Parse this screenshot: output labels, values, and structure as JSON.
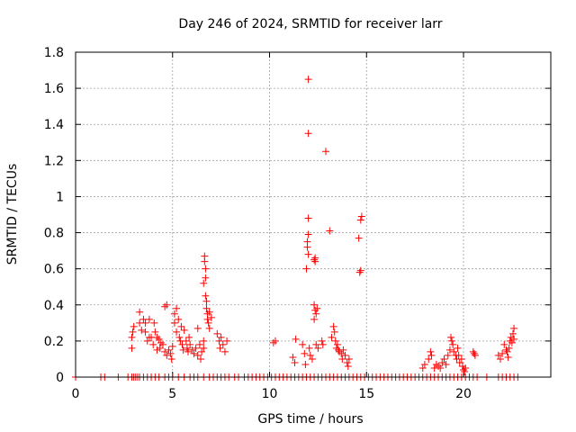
{
  "chart_data": {
    "type": "scatter",
    "title": "Day 246 of 2024, SRMTID for receiver larr",
    "xlabel": "GPS time / hours",
    "ylabel": "SRMTID / TECUs",
    "xlim": [
      0,
      24.5
    ],
    "ylim": [
      0,
      1.8
    ],
    "x_ticks": [
      0,
      5,
      10,
      15,
      20
    ],
    "x_tick_labels": [
      "0",
      "5",
      "10",
      "15",
      "20"
    ],
    "y_ticks": [
      0,
      0.2,
      0.4,
      0.6,
      0.8,
      1.0,
      1.2,
      1.4,
      1.6,
      1.8
    ],
    "y_tick_labels": [
      "0",
      "0.2",
      "0.4",
      "0.6",
      "0.8",
      "1",
      "1.2",
      "1.4",
      "1.6",
      "1.8"
    ],
    "grid": true,
    "marker": "+",
    "color": "#ff0000",
    "series": [
      {
        "name": "SRMTID",
        "points": [
          [
            0.0,
            0.0
          ],
          [
            1.3,
            0.0
          ],
          [
            1.5,
            0.0
          ],
          [
            2.2,
            0.0
          ],
          [
            2.7,
            0.0
          ],
          [
            2.9,
            0.0
          ],
          [
            3.0,
            0.0
          ],
          [
            3.1,
            0.0
          ],
          [
            3.2,
            0.0
          ],
          [
            3.3,
            0.0
          ],
          [
            3.5,
            0.0
          ],
          [
            3.7,
            0.0
          ],
          [
            3.9,
            0.0
          ],
          [
            4.1,
            0.0
          ],
          [
            4.3,
            0.0
          ],
          [
            4.6,
            0.0
          ],
          [
            4.8,
            0.0
          ],
          [
            5.0,
            0.0
          ],
          [
            5.3,
            0.0
          ],
          [
            5.6,
            0.0
          ],
          [
            5.9,
            0.0
          ],
          [
            6.1,
            0.0
          ],
          [
            6.3,
            0.0
          ],
          [
            6.6,
            0.0
          ],
          [
            6.9,
            0.0
          ],
          [
            7.1,
            0.0
          ],
          [
            7.3,
            0.0
          ],
          [
            7.5,
            0.0
          ],
          [
            7.7,
            0.0
          ],
          [
            7.9,
            0.0
          ],
          [
            8.2,
            0.0
          ],
          [
            8.4,
            0.0
          ],
          [
            8.7,
            0.0
          ],
          [
            8.9,
            0.0
          ],
          [
            9.1,
            0.0
          ],
          [
            9.3,
            0.0
          ],
          [
            9.5,
            0.0
          ],
          [
            9.7,
            0.0
          ],
          [
            9.9,
            0.0
          ],
          [
            10.1,
            0.0
          ],
          [
            10.3,
            0.0
          ],
          [
            10.5,
            0.0
          ],
          [
            10.7,
            0.0
          ],
          [
            10.9,
            0.0
          ],
          [
            11.1,
            0.0
          ],
          [
            11.3,
            0.0
          ],
          [
            11.5,
            0.0
          ],
          [
            11.7,
            0.0
          ],
          [
            11.9,
            0.0
          ],
          [
            12.1,
            0.0
          ],
          [
            12.3,
            0.0
          ],
          [
            12.5,
            0.0
          ],
          [
            12.7,
            0.0
          ],
          [
            12.9,
            0.0
          ],
          [
            13.1,
            0.0
          ],
          [
            13.3,
            0.0
          ],
          [
            13.5,
            0.0
          ],
          [
            13.7,
            0.0
          ],
          [
            13.9,
            0.0
          ],
          [
            14.1,
            0.0
          ],
          [
            14.3,
            0.0
          ],
          [
            14.5,
            0.0
          ],
          [
            14.7,
            0.0
          ],
          [
            14.9,
            0.0
          ],
          [
            15.1,
            0.0
          ],
          [
            15.3,
            0.0
          ],
          [
            15.5,
            0.0
          ],
          [
            15.7,
            0.0
          ],
          [
            15.9,
            0.0
          ],
          [
            16.1,
            0.0
          ],
          [
            16.3,
            0.0
          ],
          [
            16.5,
            0.0
          ],
          [
            16.7,
            0.0
          ],
          [
            16.9,
            0.0
          ],
          [
            17.1,
            0.0
          ],
          [
            17.3,
            0.0
          ],
          [
            17.5,
            0.0
          ],
          [
            17.7,
            0.0
          ],
          [
            17.9,
            0.0
          ],
          [
            18.1,
            0.0
          ],
          [
            18.3,
            0.0
          ],
          [
            18.5,
            0.0
          ],
          [
            18.7,
            0.0
          ],
          [
            18.9,
            0.0
          ],
          [
            19.1,
            0.0
          ],
          [
            19.3,
            0.0
          ],
          [
            19.5,
            0.0
          ],
          [
            19.7,
            0.0
          ],
          [
            19.9,
            0.0
          ],
          [
            20.1,
            0.0
          ],
          [
            20.3,
            0.0
          ],
          [
            20.5,
            0.0
          ],
          [
            20.7,
            0.0
          ],
          [
            21.2,
            0.0
          ],
          [
            21.8,
            0.0
          ],
          [
            22.0,
            0.0
          ],
          [
            22.2,
            0.0
          ],
          [
            22.4,
            0.0
          ],
          [
            22.6,
            0.0
          ],
          [
            22.8,
            0.0
          ],
          [
            2.9,
            0.16
          ],
          [
            2.9,
            0.22
          ],
          [
            2.95,
            0.25
          ],
          [
            3.0,
            0.28
          ],
          [
            3.3,
            0.3
          ],
          [
            3.3,
            0.36
          ],
          [
            3.4,
            0.26
          ],
          [
            3.5,
            0.32
          ],
          [
            3.6,
            0.3
          ],
          [
            3.6,
            0.25
          ],
          [
            3.7,
            0.2
          ],
          [
            3.8,
            0.22
          ],
          [
            3.8,
            0.32
          ],
          [
            3.9,
            0.22
          ],
          [
            4.0,
            0.18
          ],
          [
            4.05,
            0.3
          ],
          [
            4.1,
            0.25
          ],
          [
            4.2,
            0.22
          ],
          [
            4.2,
            0.15
          ],
          [
            4.3,
            0.21
          ],
          [
            4.35,
            0.16
          ],
          [
            4.4,
            0.19
          ],
          [
            4.5,
            0.18
          ],
          [
            4.6,
            0.14
          ],
          [
            4.6,
            0.39
          ],
          [
            4.7,
            0.4
          ],
          [
            4.7,
            0.12
          ],
          [
            4.8,
            0.15
          ],
          [
            4.9,
            0.13
          ],
          [
            4.95,
            0.1
          ],
          [
            5.0,
            0.17
          ],
          [
            5.1,
            0.35
          ],
          [
            5.1,
            0.3
          ],
          [
            5.2,
            0.38
          ],
          [
            5.2,
            0.25
          ],
          [
            5.3,
            0.32
          ],
          [
            5.35,
            0.22
          ],
          [
            5.4,
            0.2
          ],
          [
            5.45,
            0.28
          ],
          [
            5.5,
            0.18
          ],
          [
            5.55,
            0.15
          ],
          [
            5.6,
            0.26
          ],
          [
            5.7,
            0.2
          ],
          [
            5.75,
            0.16
          ],
          [
            5.8,
            0.14
          ],
          [
            5.85,
            0.22
          ],
          [
            5.9,
            0.18
          ],
          [
            6.0,
            0.15
          ],
          [
            6.1,
            0.13
          ],
          [
            6.2,
            0.16
          ],
          [
            6.3,
            0.12
          ],
          [
            6.3,
            0.27
          ],
          [
            6.4,
            0.18
          ],
          [
            6.45,
            0.1
          ],
          [
            6.5,
            0.14
          ],
          [
            6.6,
            0.16
          ],
          [
            6.6,
            0.2
          ],
          [
            6.6,
            0.52
          ],
          [
            6.65,
            0.64
          ],
          [
            6.65,
            0.67
          ],
          [
            6.7,
            0.6
          ],
          [
            6.7,
            0.55
          ],
          [
            6.7,
            0.45
          ],
          [
            6.75,
            0.42
          ],
          [
            6.75,
            0.38
          ],
          [
            6.8,
            0.35
          ],
          [
            6.8,
            0.32
          ],
          [
            6.85,
            0.3
          ],
          [
            6.9,
            0.36
          ],
          [
            6.9,
            0.27
          ],
          [
            7.0,
            0.33
          ],
          [
            7.3,
            0.24
          ],
          [
            7.4,
            0.2
          ],
          [
            7.45,
            0.16
          ],
          [
            7.5,
            0.22
          ],
          [
            7.6,
            0.18
          ],
          [
            7.7,
            0.14
          ],
          [
            7.8,
            0.2
          ],
          [
            10.2,
            0.19
          ],
          [
            10.3,
            0.2
          ],
          [
            11.2,
            0.11
          ],
          [
            11.3,
            0.08
          ],
          [
            11.35,
            0.21
          ],
          [
            11.7,
            0.18
          ],
          [
            11.8,
            0.13
          ],
          [
            11.85,
            0.07
          ],
          [
            11.9,
            0.6
          ],
          [
            11.95,
            0.72
          ],
          [
            11.95,
            0.75
          ],
          [
            12.0,
            0.79
          ],
          [
            12.0,
            0.68
          ],
          [
            12.0,
            0.88
          ],
          [
            12.0,
            1.35
          ],
          [
            12.0,
            1.65
          ],
          [
            12.05,
            0.16
          ],
          [
            12.1,
            0.12
          ],
          [
            12.2,
            0.1
          ],
          [
            12.3,
            0.65
          ],
          [
            12.35,
            0.66
          ],
          [
            12.35,
            0.64
          ],
          [
            12.3,
            0.4
          ],
          [
            12.35,
            0.37
          ],
          [
            12.4,
            0.35
          ],
          [
            12.45,
            0.38
          ],
          [
            12.3,
            0.32
          ],
          [
            12.4,
            0.18
          ],
          [
            12.5,
            0.16
          ],
          [
            12.7,
            0.2
          ],
          [
            12.75,
            0.18
          ],
          [
            12.9,
            1.25
          ],
          [
            13.1,
            0.81
          ],
          [
            13.2,
            0.22
          ],
          [
            13.3,
            0.28
          ],
          [
            13.35,
            0.25
          ],
          [
            13.4,
            0.2
          ],
          [
            13.45,
            0.16
          ],
          [
            13.5,
            0.18
          ],
          [
            13.55,
            0.15
          ],
          [
            13.6,
            0.14
          ],
          [
            13.7,
            0.13
          ],
          [
            13.75,
            0.1
          ],
          [
            13.8,
            0.15
          ],
          [
            13.9,
            0.12
          ],
          [
            14.0,
            0.08
          ],
          [
            14.05,
            0.06
          ],
          [
            14.1,
            0.1
          ],
          [
            14.6,
            0.77
          ],
          [
            14.7,
            0.87
          ],
          [
            14.75,
            0.89
          ],
          [
            14.7,
            0.59
          ],
          [
            14.65,
            0.58
          ],
          [
            17.9,
            0.05
          ],
          [
            18.0,
            0.07
          ],
          [
            18.2,
            0.1
          ],
          [
            18.3,
            0.14
          ],
          [
            18.35,
            0.12
          ],
          [
            18.5,
            0.05
          ],
          [
            18.6,
            0.07
          ],
          [
            18.7,
            0.06
          ],
          [
            18.8,
            0.05
          ],
          [
            18.9,
            0.08
          ],
          [
            19.0,
            0.1
          ],
          [
            19.1,
            0.07
          ],
          [
            19.2,
            0.12
          ],
          [
            19.3,
            0.15
          ],
          [
            19.35,
            0.22
          ],
          [
            19.4,
            0.2
          ],
          [
            19.45,
            0.18
          ],
          [
            19.5,
            0.14
          ],
          [
            19.6,
            0.12
          ],
          [
            19.65,
            0.1
          ],
          [
            19.7,
            0.16
          ],
          [
            19.75,
            0.12
          ],
          [
            19.8,
            0.08
          ],
          [
            19.9,
            0.1
          ],
          [
            19.95,
            0.06
          ],
          [
            20.0,
            0.04
          ],
          [
            20.05,
            0.03
          ],
          [
            20.1,
            0.05
          ],
          [
            20.5,
            0.14
          ],
          [
            20.55,
            0.13
          ],
          [
            20.6,
            0.12
          ],
          [
            21.8,
            0.12
          ],
          [
            21.9,
            0.1
          ],
          [
            22.0,
            0.13
          ],
          [
            22.1,
            0.18
          ],
          [
            22.2,
            0.15
          ],
          [
            22.25,
            0.14
          ],
          [
            22.3,
            0.11
          ],
          [
            22.35,
            0.16
          ],
          [
            22.4,
            0.2
          ],
          [
            22.45,
            0.22
          ],
          [
            22.5,
            0.19
          ],
          [
            22.55,
            0.24
          ],
          [
            22.6,
            0.27
          ],
          [
            22.6,
            0.21
          ]
        ]
      }
    ]
  }
}
